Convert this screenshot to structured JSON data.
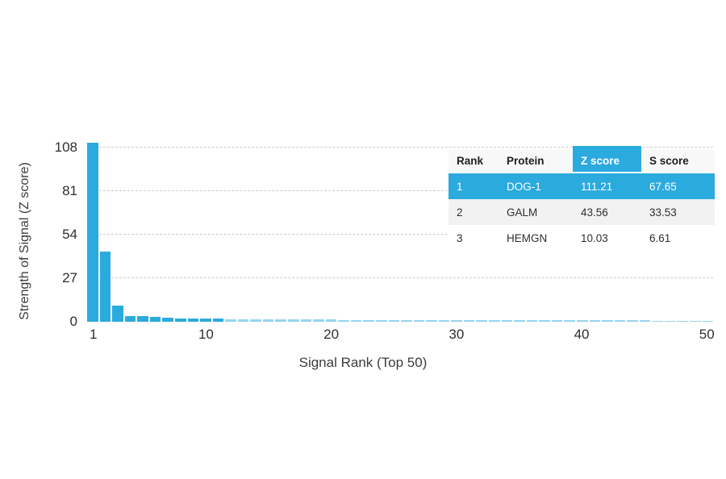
{
  "accent_color": "#2baade",
  "chart_data": {
    "type": "bar",
    "title": "",
    "xlabel": "Signal Rank (Top 50)",
    "ylabel": "Strength of Signal (Z score)",
    "bar_color": "#2baade",
    "bar_color_faint": "rgba(43,170,222,0.5)",
    "gridline_style": "horizontal dashed",
    "legend": "none",
    "ylim": [
      0,
      114
    ],
    "y_ticks": [
      0,
      27,
      54,
      81,
      108
    ],
    "x_ticks": [
      1,
      10,
      20,
      30,
      40,
      50
    ],
    "x": [
      1,
      2,
      3,
      4,
      5,
      6,
      7,
      8,
      9,
      10,
      11,
      12,
      13,
      14,
      15,
      16,
      17,
      18,
      19,
      20,
      21,
      22,
      23,
      24,
      25,
      26,
      27,
      28,
      29,
      30,
      31,
      32,
      33,
      34,
      35,
      36,
      37,
      38,
      39,
      40,
      41,
      42,
      43,
      44,
      45,
      46,
      47,
      48,
      49,
      50
    ],
    "values": [
      111.21,
      43.56,
      10.03,
      3.6,
      3.4,
      3.2,
      2.3,
      2.2,
      2.1,
      2.0,
      1.8,
      1.7,
      1.6,
      1.6,
      1.5,
      1.5,
      1.4,
      1.4,
      1.3,
      1.3,
      1.2,
      1.2,
      1.2,
      1.1,
      1.1,
      1.1,
      1.0,
      1.0,
      1.0,
      1.0,
      1.0,
      0.9,
      0.9,
      0.9,
      0.9,
      0.9,
      0.9,
      0.8,
      0.8,
      0.8,
      0.8,
      0.8,
      0.8,
      0.8,
      0.8,
      0.7,
      0.7,
      0.7,
      0.7,
      0.7
    ]
  },
  "table": {
    "headers": [
      "Rank",
      "Protein",
      "Z score",
      "S score"
    ],
    "highlight_color": "#2baade",
    "rows": [
      {
        "rank": "1",
        "protein": "DOG-1",
        "z": "111.21",
        "s": "67.65",
        "highlight": true
      },
      {
        "rank": "2",
        "protein": "GALM",
        "z": "43.56",
        "s": "33.53",
        "highlight": false
      },
      {
        "rank": "3",
        "protein": "HEMGN",
        "z": "10.03",
        "s": "6.61",
        "highlight": false
      }
    ]
  }
}
